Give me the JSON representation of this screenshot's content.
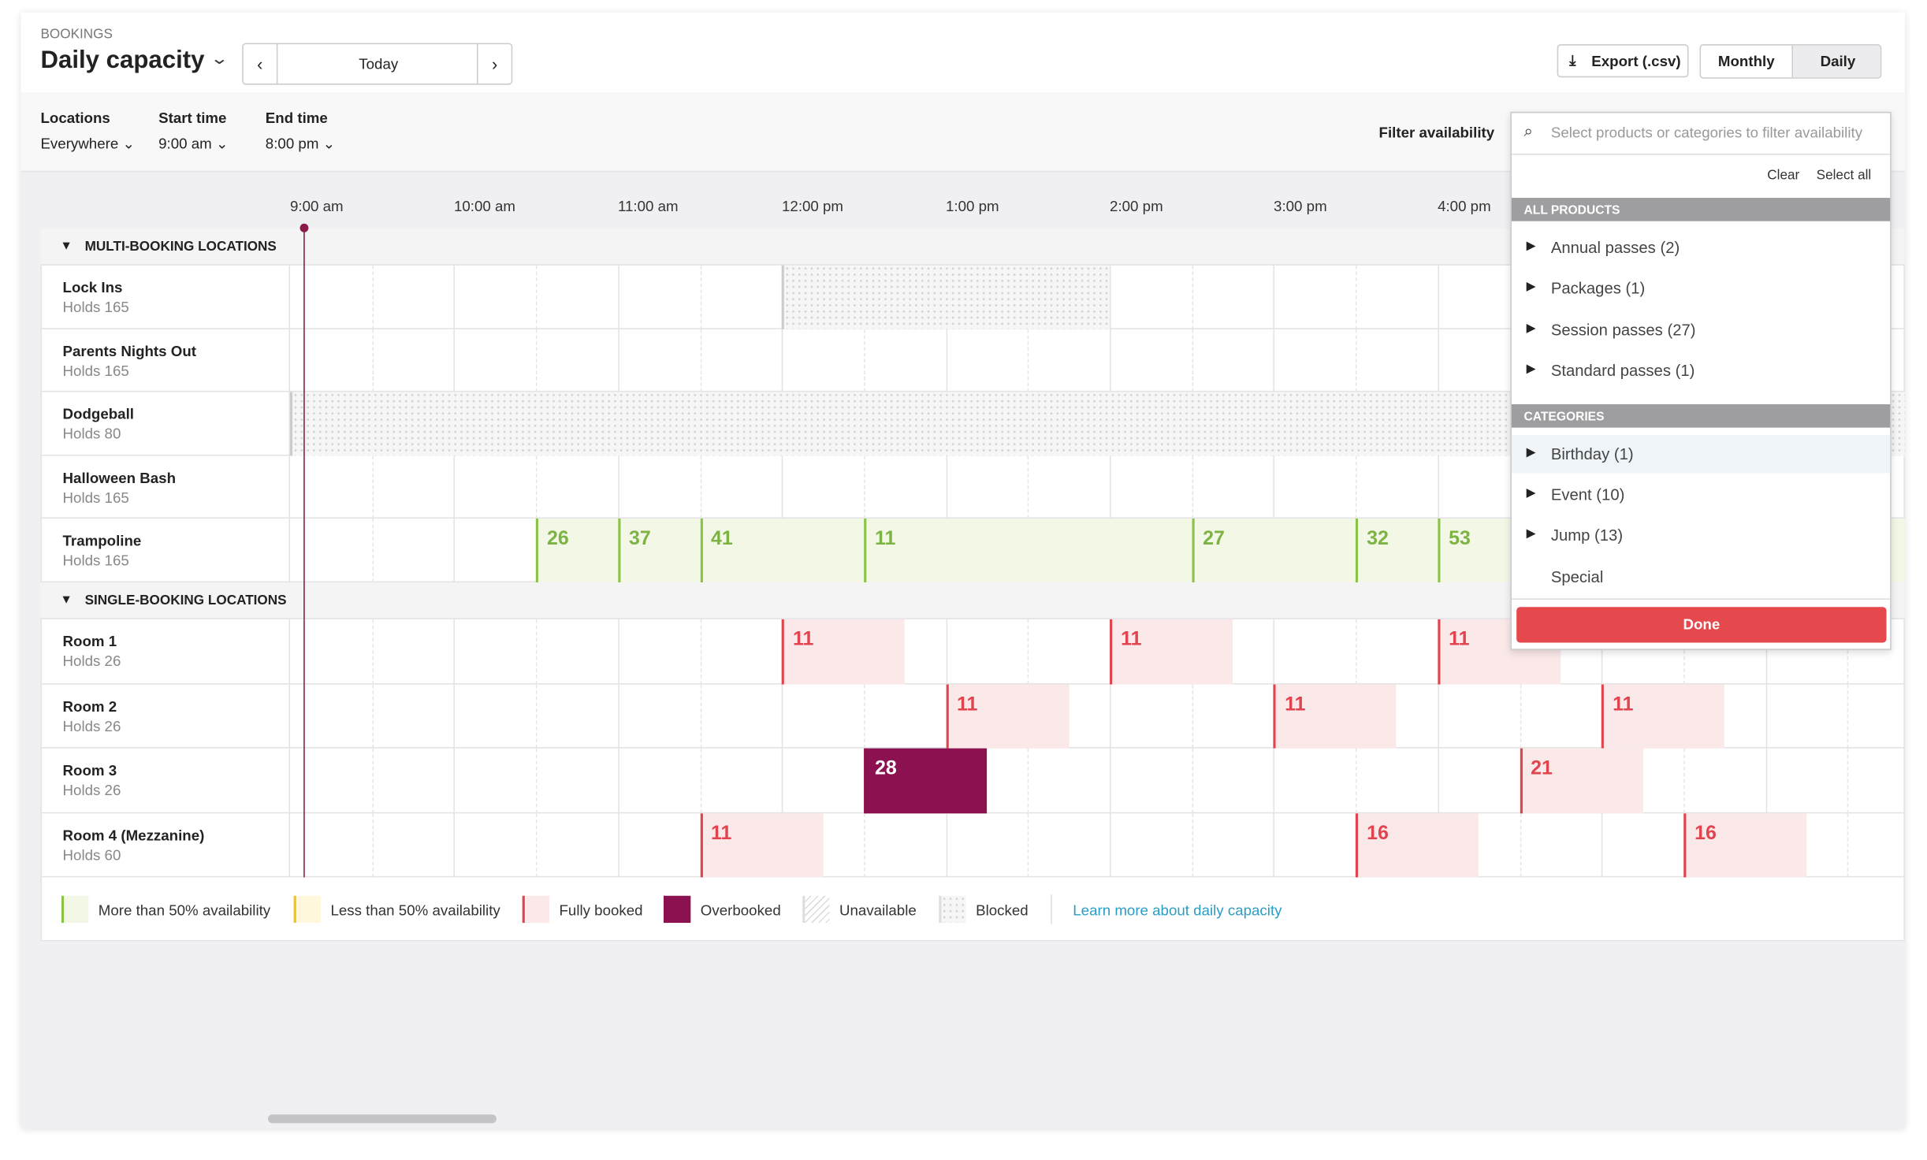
{
  "header": {
    "section": "BOOKINGS",
    "title": "Daily capacity",
    "today": "Today",
    "export": "Export (.csv)",
    "monthly": "Monthly",
    "daily": "Daily"
  },
  "filters": {
    "locations_label": "Locations",
    "locations_value": "Everywhere",
    "start_label": "Start time",
    "start_value": "9:00 am",
    "end_label": "End time",
    "end_value": "8:00 pm",
    "filter_label": "Filter availability"
  },
  "timeline": {
    "hours": [
      "9:00 am",
      "10:00 am",
      "11:00 am",
      "12:00 pm",
      "1:00 pm",
      "2:00 pm",
      "3:00 pm",
      "4:00 pm"
    ]
  },
  "groups": [
    {
      "title": "MULTI-BOOKING LOCATIONS",
      "rows": [
        {
          "name": "Lock Ins",
          "capacity": "Holds 165",
          "bookings": []
        },
        {
          "name": "Parents Nights Out",
          "capacity": "Holds 165",
          "bookings": []
        },
        {
          "name": "Dodgeball",
          "capacity": "Holds 80",
          "bookings": []
        },
        {
          "name": "Halloween Bash",
          "capacity": "Holds 165",
          "bookings": []
        },
        {
          "name": "Trampoline",
          "capacity": "Holds 165",
          "bookings": [
            {
              "label": 26,
              "status": "available"
            },
            {
              "label": 37,
              "status": "available"
            },
            {
              "label": 41,
              "status": "available"
            },
            {
              "label": 11,
              "status": "available"
            },
            {
              "label": 27,
              "status": "available"
            },
            {
              "label": 32,
              "status": "available"
            },
            {
              "label": 53,
              "status": "available"
            }
          ]
        }
      ]
    },
    {
      "title": "SINGLE-BOOKING LOCATIONS",
      "rows": [
        {
          "name": "Room 1",
          "capacity": "Holds 26",
          "bookings": [
            {
              "label": 11,
              "status": "full"
            },
            {
              "label": 11,
              "status": "full"
            },
            {
              "label": 11,
              "status": "full"
            }
          ]
        },
        {
          "name": "Room 2",
          "capacity": "Holds 26",
          "bookings": [
            {
              "label": 11,
              "status": "full"
            },
            {
              "label": 11,
              "status": "full"
            },
            {
              "label": 11,
              "status": "full"
            }
          ]
        },
        {
          "name": "Room 3",
          "capacity": "Holds 26",
          "bookings": [
            {
              "label": 28,
              "status": "overbooked"
            },
            {
              "label": 21,
              "status": "full"
            }
          ]
        },
        {
          "name": "Room 4 (Mezzanine)",
          "capacity": "Holds 60",
          "bookings": [
            {
              "label": 11,
              "status": "full"
            },
            {
              "label": 16,
              "status": "full"
            },
            {
              "label": 16,
              "status": "full"
            }
          ]
        }
      ]
    }
  ],
  "legend": {
    "items": [
      {
        "label": "More than 50% availability",
        "status": "available"
      },
      {
        "label": "Less than 50% availability",
        "status": "limited"
      },
      {
        "label": "Fully booked",
        "status": "full"
      },
      {
        "label": "Overbooked",
        "status": "overbooked"
      },
      {
        "label": "Unavailable",
        "status": "unavailable"
      },
      {
        "label": "Blocked",
        "status": "blocked"
      }
    ],
    "link": "Learn more about daily capacity"
  },
  "dropdown": {
    "placeholder": "Select products or categories to filter availability",
    "clear": "Clear",
    "select_all": "Select all",
    "sections": [
      {
        "title": "ALL PRODUCTS",
        "items": [
          {
            "label": "Annual passes (2)",
            "expandable": true
          },
          {
            "label": "Packages (1)",
            "expandable": true
          },
          {
            "label": "Session passes (27)",
            "expandable": true
          },
          {
            "label": "Standard passes (1)",
            "expandable": true
          }
        ]
      },
      {
        "title": "CATEGORIES",
        "items": [
          {
            "label": "Birthday (1)",
            "expandable": true,
            "highlighted": true
          },
          {
            "label": "Event (10)",
            "expandable": true
          },
          {
            "label": "Jump (13)",
            "expandable": true
          },
          {
            "label": "Special",
            "expandable": false
          }
        ]
      }
    ],
    "done": "Done"
  }
}
